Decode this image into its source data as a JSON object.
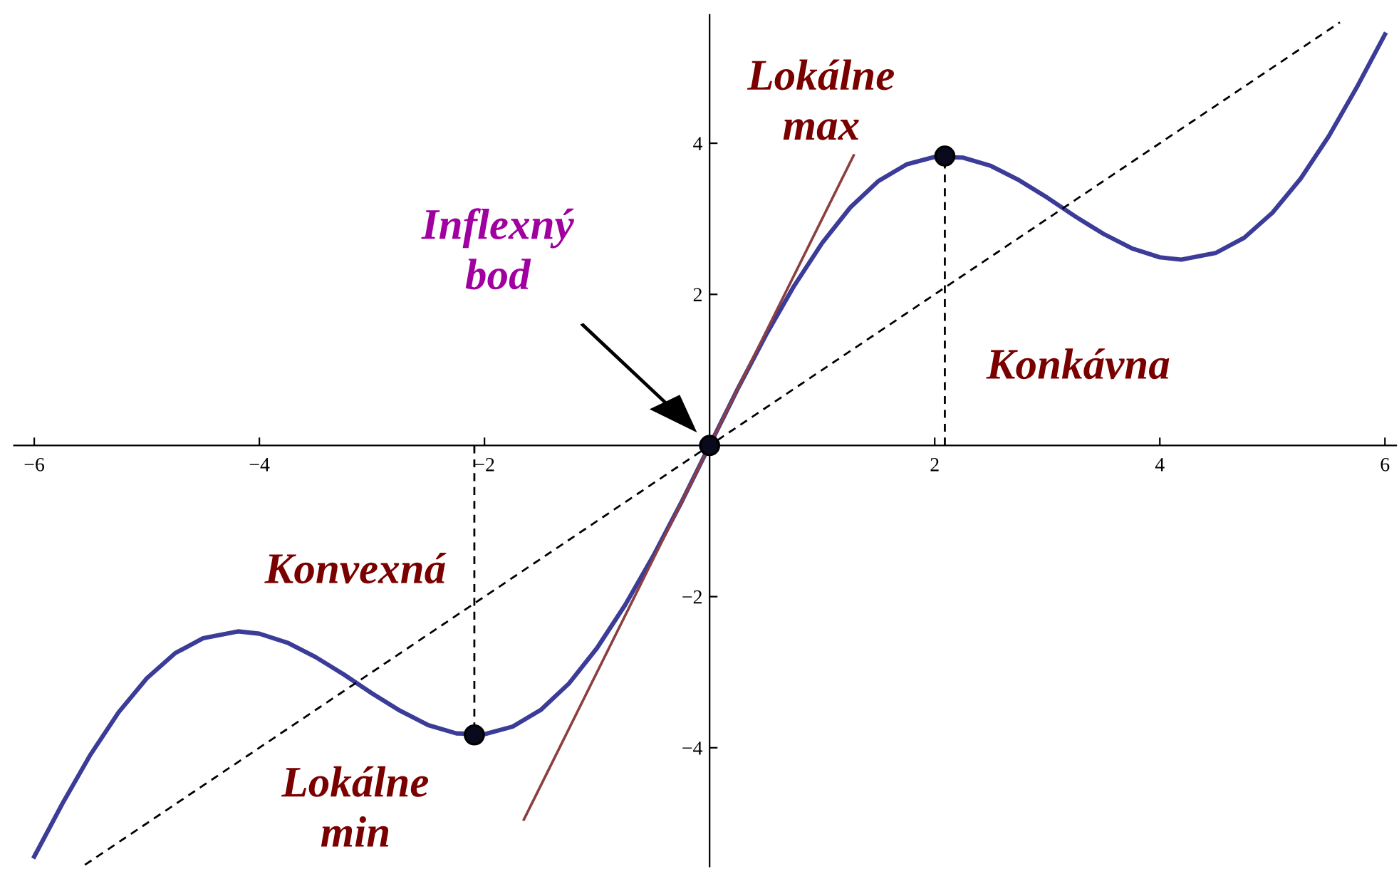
{
  "chart_data": {
    "type": "line",
    "xlim": [
      -6.18,
      6.1
    ],
    "ylim": [
      -5.57,
      5.7
    ],
    "xticks": [
      {
        "value": -6,
        "label": "−6"
      },
      {
        "value": -4,
        "label": "−4"
      },
      {
        "value": -2,
        "label": "−2"
      },
      2,
      4,
      6
    ],
    "yticks": [
      {
        "value": -4,
        "label": "−4"
      },
      {
        "value": -2,
        "label": "−2"
      },
      2,
      4
    ],
    "series": [
      {
        "color": "#3b3b98",
        "line_style": "solid",
        "x": [
          -6,
          -5.75,
          -5.5,
          -5.25,
          -5,
          -4.75,
          -4.5,
          -4.19,
          -4,
          -3.75,
          -3.5,
          -3.25,
          -3,
          -2.75,
          -2.5,
          -2.25,
          -2,
          -1.75,
          -1.5,
          -1.25,
          -1,
          -0.75,
          -0.5,
          -0.25,
          0,
          0.25,
          0.5,
          0.75,
          1,
          1.25,
          1.5,
          1.75,
          2,
          2.25,
          2.5,
          2.75,
          3,
          3.25,
          3.5,
          3.75,
          4,
          4.19,
          4.5,
          4.75,
          5,
          5.25,
          5.5,
          5.75,
          6
        ],
        "values": [
          -5.44,
          -4.74,
          -4.09,
          -3.53,
          -3.08,
          -2.75,
          -2.55,
          -2.46,
          -2.49,
          -2.61,
          -2.8,
          -3.03,
          -3.28,
          -3.51,
          -3.7,
          -3.81,
          -3.82,
          -3.72,
          -3.5,
          -3.15,
          -2.68,
          -2.11,
          -1.46,
          -0.75,
          0,
          0.75,
          1.46,
          2.11,
          2.68,
          3.15,
          3.5,
          3.72,
          3.82,
          3.81,
          3.7,
          3.51,
          3.28,
          3.03,
          2.8,
          2.61,
          2.49,
          2.46,
          2.55,
          2.75,
          3.08,
          3.53,
          4.09,
          4.74,
          5.44
        ]
      },
      {
        "color": "#000000",
        "line_style": "dashed",
        "x": [
          -5.55,
          5.6
        ],
        "values": [
          -5.55,
          5.6
        ]
      },
      {
        "color": "#8b3f3f",
        "line_style": "solid",
        "x": [
          -1.65,
          1.28
        ],
        "values": [
          -4.95,
          3.84
        ]
      },
      {
        "color": "#000000",
        "line_style": "dashed",
        "x": [
          2.09,
          2.09
        ],
        "values": [
          0,
          3.83
        ]
      },
      {
        "color": "#000000",
        "line_style": "dashed",
        "x": [
          -2.09,
          -2.09
        ],
        "values": [
          0,
          -3.83
        ]
      },
      {
        "type": "scatter",
        "color": "#0a0a1e",
        "marker": "circle",
        "x": [
          -2.09,
          0,
          2.09
        ],
        "values": [
          -3.83,
          0,
          3.83
        ]
      }
    ],
    "annotations": [
      "Lokálne\nmax",
      "Inflexný\nbod",
      "Konkávna",
      "Konvexná",
      "Lokálne\nmin"
    ]
  }
}
